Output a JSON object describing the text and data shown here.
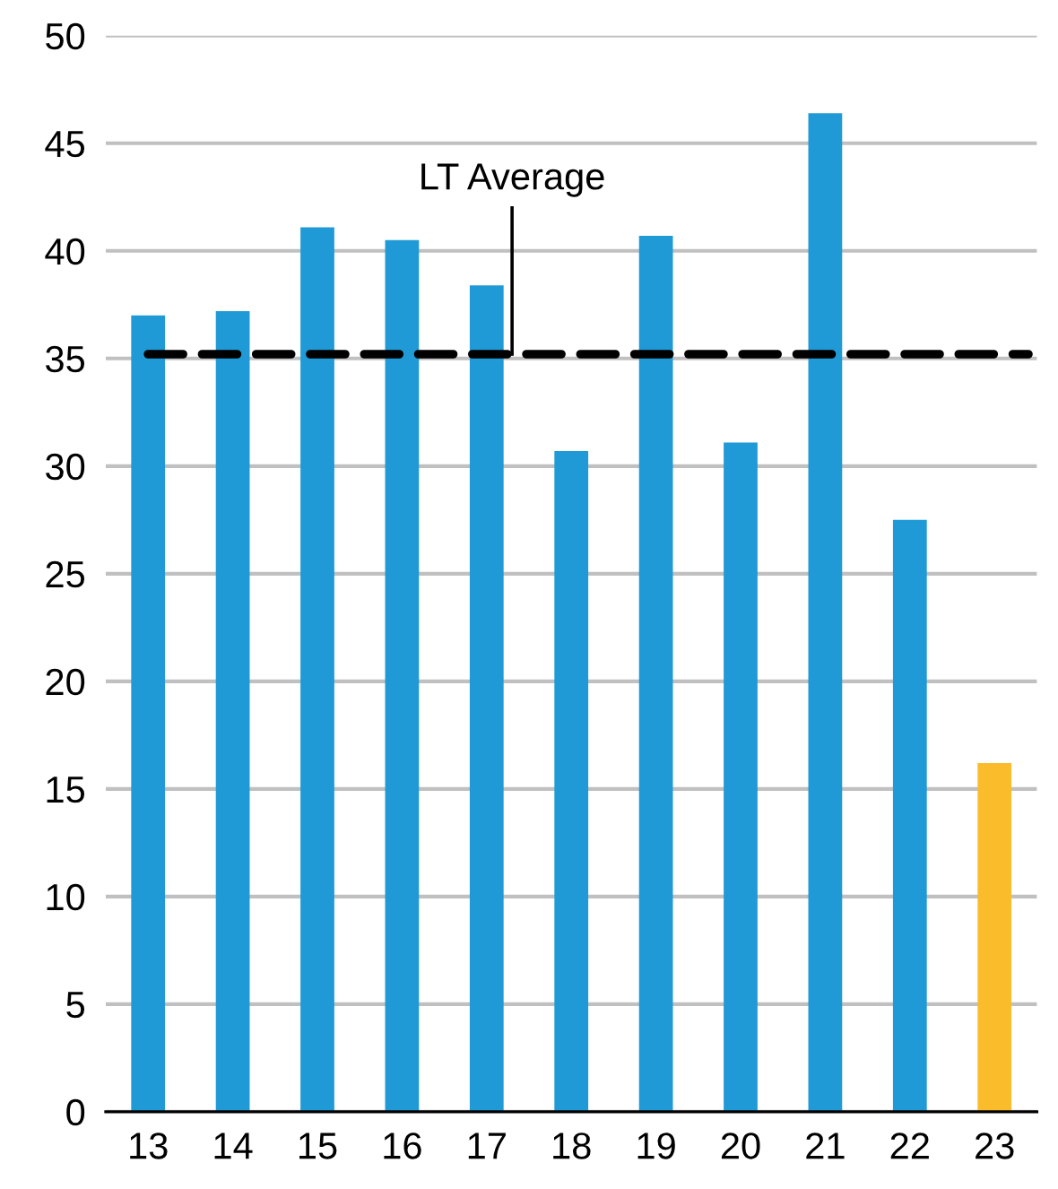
{
  "chart_data": {
    "type": "bar",
    "categories": [
      "13",
      "14",
      "15",
      "16",
      "17",
      "18",
      "19",
      "20",
      "21",
      "22",
      "23"
    ],
    "values": [
      37.0,
      37.2,
      41.1,
      40.5,
      38.4,
      30.7,
      40.7,
      31.1,
      46.4,
      27.5,
      16.2
    ],
    "colors": [
      "#209ad6",
      "#209ad6",
      "#209ad6",
      "#209ad6",
      "#209ad6",
      "#209ad6",
      "#209ad6",
      "#209ad6",
      "#209ad6",
      "#209ad6",
      "#fbbc2b"
    ],
    "ylim": [
      0,
      50
    ],
    "yticks": [
      0,
      5,
      10,
      15,
      20,
      25,
      30,
      35,
      40,
      45,
      50
    ],
    "grid": "y",
    "ref_lines": [
      {
        "axis": "y",
        "value": 35.2,
        "label": "LT Average",
        "color": "#000000",
        "line_style": "dashed"
      }
    ]
  }
}
